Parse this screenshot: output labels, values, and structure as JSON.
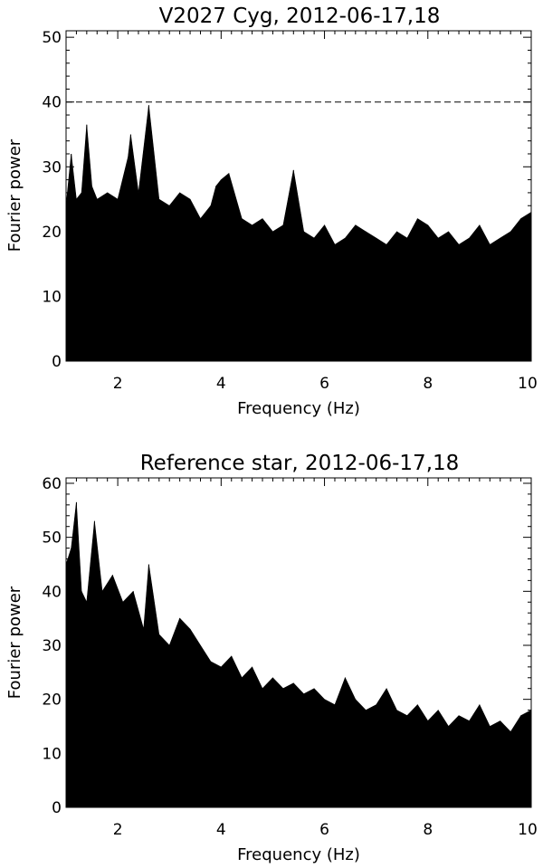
{
  "chart_data": [
    {
      "type": "line",
      "title": "V2027 Cyg, 2012-06-17,18",
      "xlabel": "Frequency (Hz)",
      "ylabel": "Fourier power",
      "xlim": [
        1,
        10
      ],
      "ylim": [
        0,
        51
      ],
      "xticks": [
        2,
        4,
        6,
        8,
        10
      ],
      "yticks": [
        0,
        10,
        20,
        30,
        40,
        50
      ],
      "grid": false,
      "reference_line": {
        "y": 40,
        "style": "dashed"
      },
      "series": [
        {
          "x": [
            1.0,
            1.1,
            1.2,
            1.3,
            1.4,
            1.5,
            1.6,
            1.8,
            2.0,
            2.2,
            2.25,
            2.4,
            2.6,
            2.8,
            3.0,
            3.2,
            3.4,
            3.6,
            3.8,
            3.9,
            4.0,
            4.15,
            4.4,
            4.6,
            4.8,
            5.0,
            5.2,
            5.4,
            5.6,
            5.8,
            6.0,
            6.2,
            6.4,
            6.6,
            6.8,
            7.0,
            7.2,
            7.4,
            7.6,
            7.8,
            8.0,
            8.2,
            8.4,
            8.6,
            8.8,
            9.0,
            9.2,
            9.4,
            9.6,
            9.8,
            10.0
          ],
          "values": [
            24,
            32,
            25,
            26,
            36.5,
            27,
            25,
            26,
            25,
            31.5,
            35,
            26,
            39.5,
            25,
            24,
            26,
            25,
            22,
            24,
            27,
            28,
            29,
            22,
            21,
            22,
            20,
            21,
            29.5,
            20,
            19,
            21,
            18,
            19,
            21,
            20,
            19,
            18,
            20,
            19,
            22,
            21,
            19,
            20,
            18,
            19,
            21,
            18,
            19,
            20,
            22,
            23
          ]
        }
      ]
    },
    {
      "type": "line",
      "title": "Reference star, 2012-06-17,18",
      "xlabel": "Frequency (Hz)",
      "ylabel": "Fourier power",
      "xlim": [
        1,
        10
      ],
      "ylim": [
        0,
        61
      ],
      "xticks": [
        2,
        4,
        6,
        8,
        10
      ],
      "yticks": [
        0,
        10,
        20,
        30,
        40,
        50,
        60
      ],
      "grid": false,
      "series": [
        {
          "x": [
            1.0,
            1.1,
            1.2,
            1.3,
            1.4,
            1.55,
            1.7,
            1.9,
            2.1,
            2.3,
            2.5,
            2.6,
            2.8,
            3.0,
            3.2,
            3.4,
            3.6,
            3.8,
            4.0,
            4.2,
            4.4,
            4.6,
            4.8,
            5.0,
            5.2,
            5.4,
            5.6,
            5.8,
            6.0,
            6.2,
            6.4,
            6.6,
            6.8,
            7.0,
            7.2,
            7.4,
            7.6,
            7.8,
            8.0,
            8.2,
            8.4,
            8.6,
            8.8,
            9.0,
            9.2,
            9.4,
            9.6,
            9.8,
            10.0
          ],
          "values": [
            45,
            48,
            56.5,
            40,
            38,
            53,
            40,
            43,
            38,
            40,
            33,
            45,
            32,
            30,
            35,
            33,
            30,
            27,
            26,
            28,
            24,
            26,
            22,
            24,
            22,
            23,
            21,
            22,
            20,
            19,
            24,
            20,
            18,
            19,
            22,
            18,
            17,
            19,
            16,
            18,
            15,
            17,
            16,
            19,
            15,
            16,
            14,
            17,
            18
          ]
        }
      ]
    }
  ]
}
